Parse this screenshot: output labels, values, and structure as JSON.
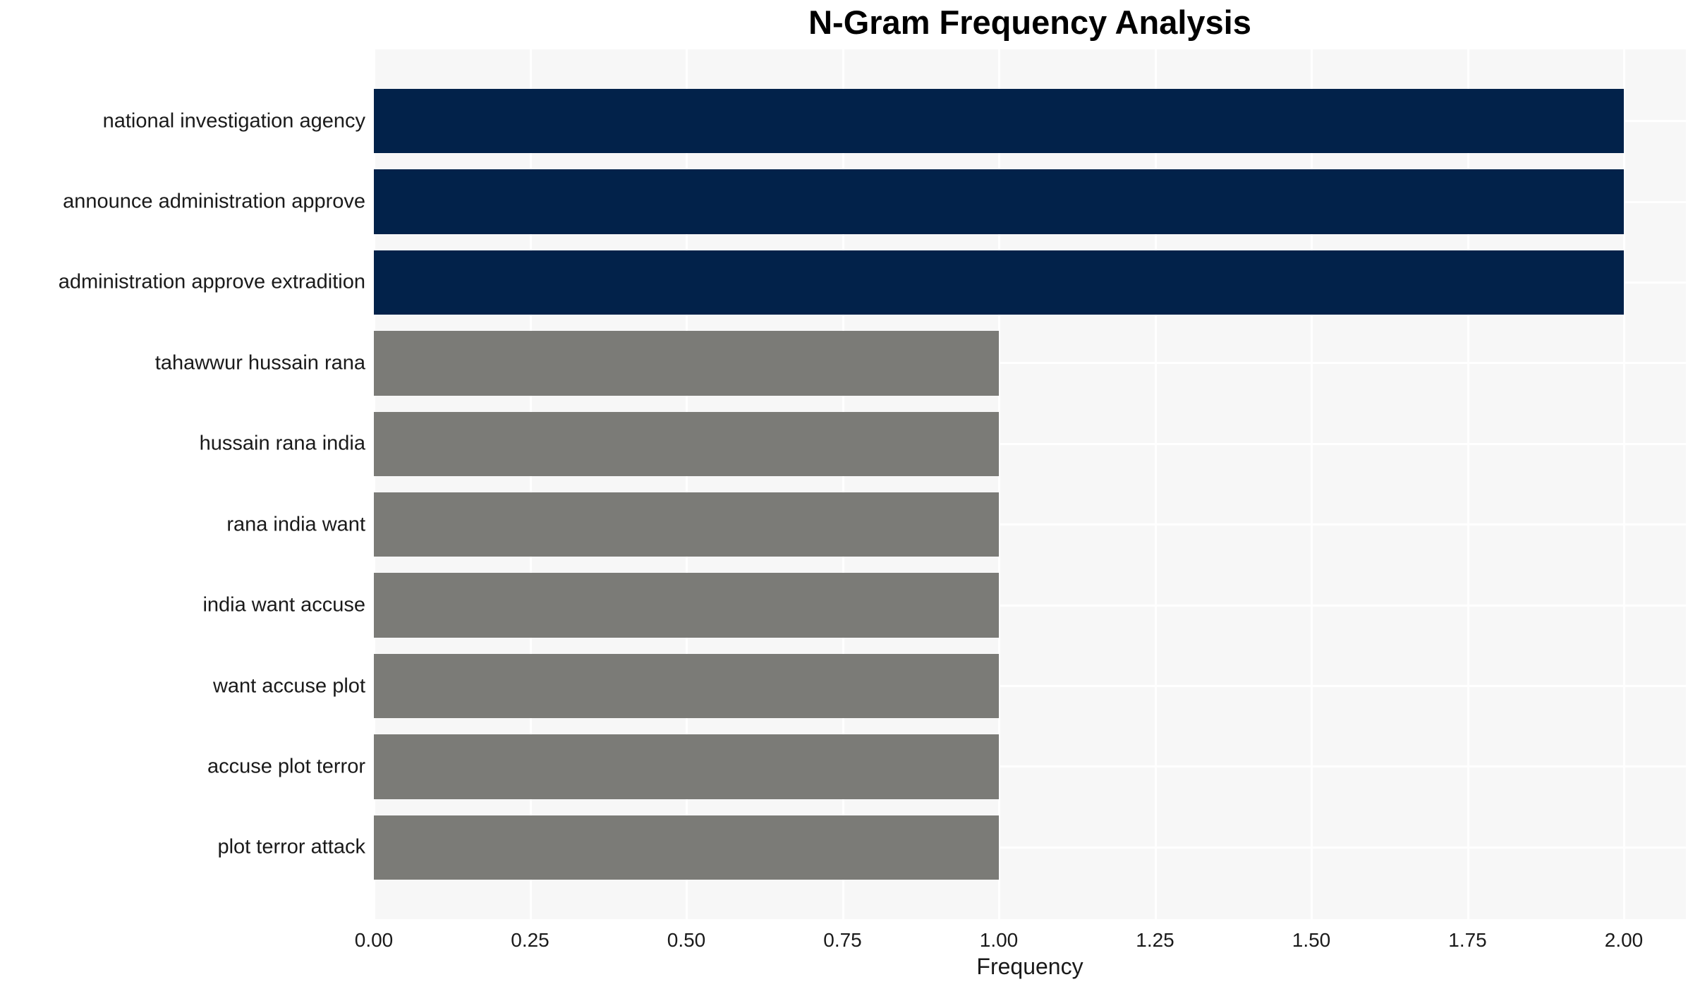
{
  "chart_data": {
    "type": "bar",
    "orientation": "horizontal",
    "title": "N-Gram Frequency Analysis",
    "xlabel": "Frequency",
    "ylabel": "",
    "categories": [
      "national investigation agency",
      "announce administration approve",
      "administration approve extradition",
      "tahawwur hussain rana",
      "hussain rana india",
      "rana india want",
      "india want accuse",
      "want accuse plot",
      "accuse plot terror",
      "plot terror attack"
    ],
    "values": [
      2,
      2,
      2,
      1,
      1,
      1,
      1,
      1,
      1,
      1
    ],
    "xlim": [
      0,
      2.1
    ],
    "xticks": [
      0,
      0.25,
      0.5,
      0.75,
      1,
      1.25,
      1.5,
      1.75,
      2
    ],
    "xtick_labels": [
      "0.00",
      "0.25",
      "0.50",
      "0.75",
      "1.00",
      "1.25",
      "1.50",
      "1.75",
      "2.00"
    ],
    "grid": true,
    "legend": false,
    "colors": {
      "bar_high": "#02224a",
      "bar_low": "#7b7b77",
      "plot_background": "#f7f7f7",
      "gridline": "#ffffff",
      "tick_text": "#1a1a1a",
      "title_text": "#000000"
    },
    "color_by_value": {
      "2": "#02224a",
      "1": "#7b7b77"
    }
  }
}
